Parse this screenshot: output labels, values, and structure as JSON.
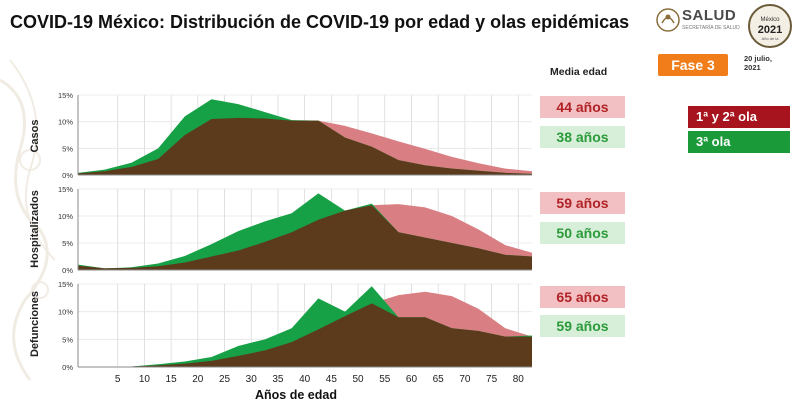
{
  "header": {
    "title": "COVID-19 México: Distribución de COVID-19 por edad y olas epidémicas",
    "logo_text": "SALUD",
    "logo_sub": "SECRETARÍA DE SALUD",
    "phase": "Fase 3",
    "date": "20 julio, 2021",
    "median_header": "Media edad"
  },
  "legend": {
    "wave12": "1ª y 2ª ola",
    "wave3": "3ª ola"
  },
  "colors": {
    "wave12_area": "#d97f84",
    "wave3_area": "#17a146",
    "overlap_area": "#5b3b1c",
    "wave12_legend": "#a8141d",
    "wave3_legend": "#1b9a3a",
    "phase": "#f07d1a"
  },
  "chart_data": [
    {
      "type": "area",
      "ylabel": "Casos",
      "xlabel": "Años de edad",
      "x": [
        0,
        5,
        10,
        15,
        20,
        25,
        30,
        35,
        40,
        45,
        50,
        55,
        60,
        65,
        70,
        75,
        80,
        85
      ],
      "ylim": [
        0,
        15
      ],
      "yticks": [
        "0%",
        "5%",
        "10%",
        "15%"
      ],
      "series": [
        {
          "name": "1ª y 2ª ola",
          "median_age": "44 años",
          "values": [
            0.3,
            0.7,
            1.5,
            3.0,
            7.5,
            10.5,
            10.7,
            10.6,
            10.2,
            10.2,
            9.2,
            7.8,
            6.3,
            4.9,
            3.4,
            2.2,
            1.2,
            0.7
          ]
        },
        {
          "name": "3ª ola",
          "median_age": "38 años",
          "values": [
            0.4,
            1.0,
            2.3,
            5.0,
            11.0,
            14.2,
            13.3,
            11.8,
            10.3,
            10.2,
            7.0,
            5.3,
            2.8,
            1.8,
            1.2,
            0.8,
            0.4,
            0.2
          ]
        }
      ]
    },
    {
      "type": "area",
      "ylabel": "Hospitalizados",
      "xlabel": "Años de edad",
      "x": [
        0,
        5,
        10,
        15,
        20,
        25,
        30,
        35,
        40,
        45,
        50,
        55,
        60,
        65,
        70,
        75,
        80,
        85
      ],
      "ylim": [
        0,
        15
      ],
      "yticks": [
        "0%",
        "5%",
        "10%",
        "15%"
      ],
      "series": [
        {
          "name": "1ª y 2ª ola",
          "median_age": "59 años",
          "values": [
            0.8,
            0.3,
            0.4,
            0.7,
            1.4,
            2.5,
            3.6,
            5.2,
            7.0,
            9.3,
            11.0,
            12.0,
            12.2,
            11.6,
            10.0,
            7.5,
            4.6,
            3.2
          ]
        },
        {
          "name": "3ª ola",
          "median_age": "50 años",
          "values": [
            1.0,
            0.3,
            0.5,
            1.2,
            2.6,
            4.8,
            7.2,
            9.0,
            10.5,
            14.2,
            11.0,
            12.3,
            7.0,
            6.0,
            5.0,
            4.0,
            2.8,
            2.5
          ]
        }
      ]
    },
    {
      "type": "area",
      "ylabel": "Defunciones",
      "xlabel": "Años de edad",
      "x": [
        0,
        5,
        10,
        15,
        20,
        25,
        30,
        35,
        40,
        45,
        50,
        55,
        60,
        65,
        70,
        75,
        80,
        85
      ],
      "ylim": [
        0,
        15
      ],
      "yticks": [
        "0%",
        "5%",
        "10%",
        "15%"
      ],
      "xticks": [
        "5",
        "10",
        "15",
        "20",
        "25",
        "30",
        "35",
        "40",
        "45",
        "50",
        "55",
        "60",
        "65",
        "70",
        "75",
        "80"
      ],
      "series": [
        {
          "name": "1ª y 2ª ola",
          "median_age": "65 años",
          "values": [
            0.0,
            0.05,
            0.1,
            0.3,
            0.6,
            1.1,
            2.0,
            3.0,
            4.5,
            6.8,
            9.2,
            11.5,
            13.0,
            13.6,
            12.8,
            10.5,
            7.0,
            5.5
          ]
        },
        {
          "name": "3ª ola",
          "median_age": "59 años",
          "values": [
            0.0,
            0.05,
            0.1,
            0.5,
            1.0,
            1.8,
            3.8,
            5.0,
            7.0,
            12.4,
            10.0,
            14.6,
            9.0,
            9.0,
            7.0,
            6.5,
            5.5,
            5.7
          ]
        }
      ]
    }
  ]
}
